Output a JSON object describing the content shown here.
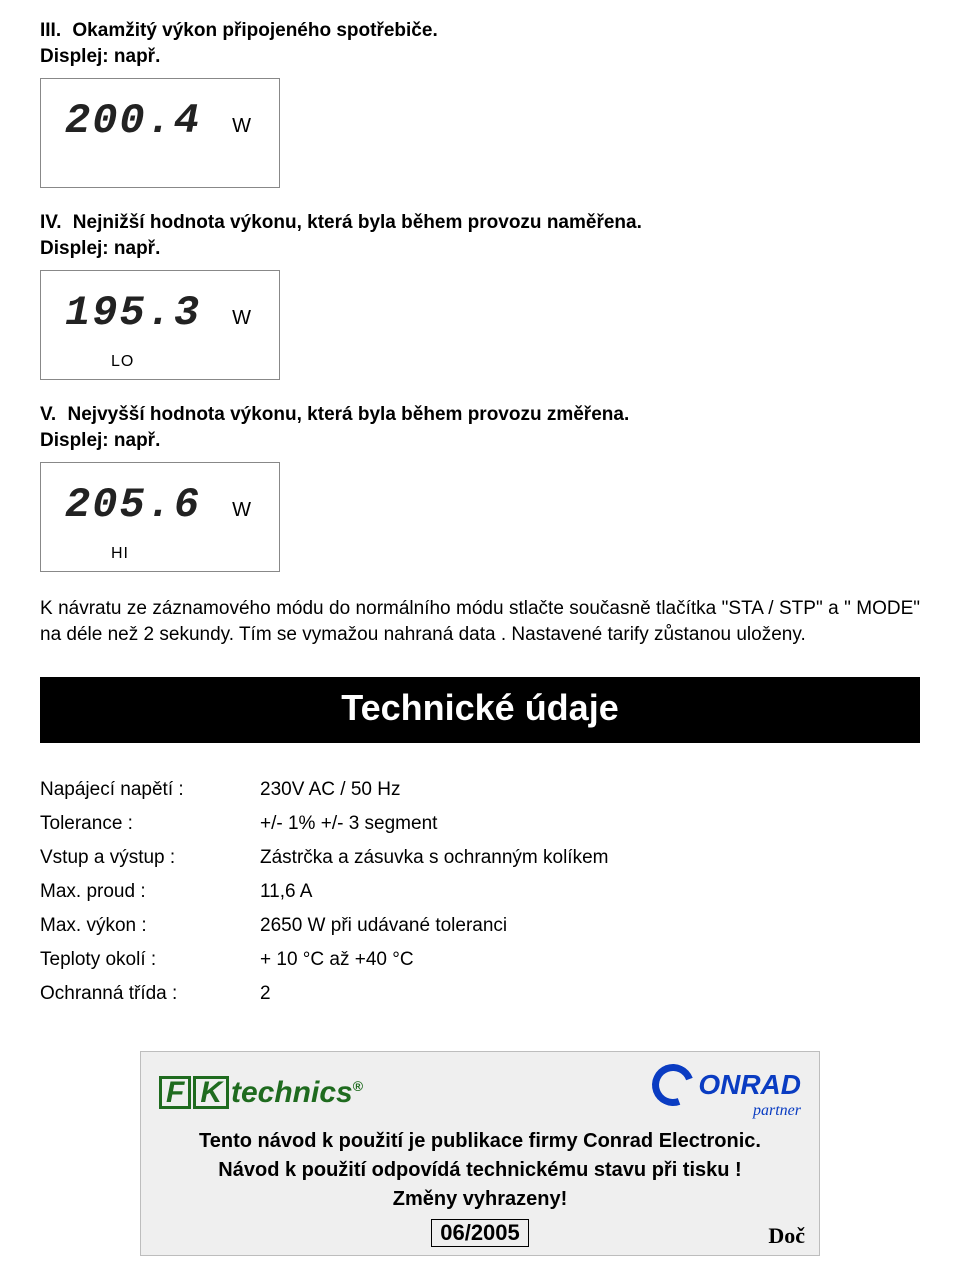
{
  "section3": {
    "num": "III.",
    "title": "Okamžitý výkon připojeného spotřebiče.",
    "sub": "Displej: např.",
    "lcd": {
      "value": "200.4",
      "unit": "W",
      "sub": ""
    }
  },
  "section4": {
    "num": "IV.",
    "title": "Nejnižší hodnota výkonu, která byla během provozu naměřena.",
    "sub": "Displej: např.",
    "lcd": {
      "value": "195.3",
      "unit": "W",
      "sub": "LO"
    }
  },
  "section5": {
    "num": "V.",
    "title": "Nejvyšší hodnota výkonu, která byla během provozu změřena.",
    "sub": "Displej: např.",
    "lcd": {
      "value": "205.6",
      "unit": "W",
      "sub": "HI"
    }
  },
  "paragraph": "K návratu ze záznamového módu do normálního módu stlačte současně tlačítka \"STA / STP\" a \" MODE\" na déle než 2 sekundy. Tím se vymažou nahraná data . Nastavené tarify zůstanou uloženy.",
  "band": "Technické údaje",
  "specs": [
    {
      "label": "Napájecí napětí :",
      "value": "230V AC / 50 Hz"
    },
    {
      "label": "Tolerance :",
      "value": "+/- 1% +/- 3 segment"
    },
    {
      "label": "Vstup a výstup :",
      "value": "Zástrčka a zásuvka s ochranným kolíkem"
    },
    {
      "label": "Max. proud :",
      "value": "11,6 A"
    },
    {
      "label": "Max. výkon :",
      "value": "2650 W při udávané toleranci"
    },
    {
      "label": "Teploty okolí :",
      "value": "+ 10 °C až +40 °C"
    },
    {
      "label": "Ochranná třída :",
      "value": "2"
    }
  ],
  "footer": {
    "fk_f": "F",
    "fk_k": "K",
    "fk_rest": "technics",
    "fk_reg": "®",
    "conrad": "ONRAD",
    "partner": "partner",
    "line1": "Tento návod k použití je publikace firmy Conrad Electronic.",
    "line2": "Návod k použití odpovídá  technickému stavu při  tisku !",
    "line3": "Změny vyhrazeny!",
    "date": "06/2005",
    "stamp": "Doč"
  }
}
